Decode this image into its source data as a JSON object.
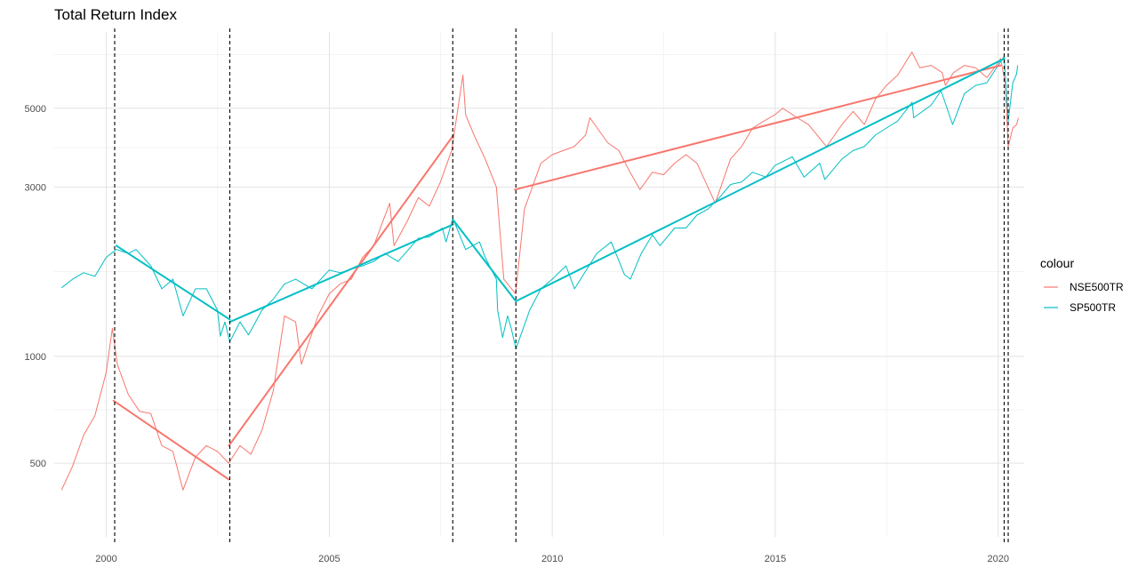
{
  "chart_data": {
    "type": "line",
    "title": "Total Return Index",
    "xlabel": "",
    "ylabel": "",
    "x_scale": "date",
    "y_scale": "log10",
    "xlim": [
      "1998-11-01",
      "2020-08-01"
    ],
    "ylim": [
      310,
      8200
    ],
    "x_ticks": [
      {
        "value": "2000-01-01",
        "label": "2000"
      },
      {
        "value": "2005-01-01",
        "label": "2005"
      },
      {
        "value": "2010-01-01",
        "label": "2010"
      },
      {
        "value": "2015-01-01",
        "label": "2015"
      },
      {
        "value": "2020-01-01",
        "label": "2020"
      }
    ],
    "x_minor_ticks": [
      "2002-07-01",
      "2007-07-01",
      "2012-07-01",
      "2017-07-01"
    ],
    "y_ticks": [
      {
        "value": 500,
        "label": "500"
      },
      {
        "value": 1000,
        "label": "1000"
      },
      {
        "value": 3000,
        "label": "3000"
      },
      {
        "value": 5000,
        "label": "5000"
      }
    ],
    "y_minor_ticks": [
      707,
      1732,
      3873,
      7071
    ],
    "grid": true,
    "legend": {
      "title": "colour",
      "position": "right"
    },
    "series": [
      {
        "name": "NSE500TR",
        "color": "#F8766D",
        "points": [
          [
            "1998-12-31",
            420
          ],
          [
            "1999-03-31",
            490
          ],
          [
            "1999-06-30",
            600
          ],
          [
            "1999-09-30",
            680
          ],
          [
            "1999-12-31",
            900
          ],
          [
            "2000-02-20",
            1200
          ],
          [
            "2000-03-31",
            950
          ],
          [
            "2000-06-30",
            780
          ],
          [
            "2000-09-30",
            700
          ],
          [
            "2000-12-31",
            690
          ],
          [
            "2001-03-31",
            560
          ],
          [
            "2001-06-30",
            540
          ],
          [
            "2001-09-20",
            420
          ],
          [
            "2001-12-31",
            520
          ],
          [
            "2002-03-31",
            560
          ],
          [
            "2002-06-30",
            540
          ],
          [
            "2002-09-30",
            500
          ],
          [
            "2002-12-31",
            560
          ],
          [
            "2003-03-31",
            530
          ],
          [
            "2003-06-30",
            620
          ],
          [
            "2003-09-30",
            800
          ],
          [
            "2003-12-31",
            1300
          ],
          [
            "2004-03-31",
            1250
          ],
          [
            "2004-05-17",
            950
          ],
          [
            "2004-09-30",
            1300
          ],
          [
            "2004-12-31",
            1500
          ],
          [
            "2005-03-31",
            1600
          ],
          [
            "2005-06-30",
            1650
          ],
          [
            "2005-09-30",
            1900
          ],
          [
            "2005-12-31",
            2050
          ],
          [
            "2006-05-10",
            2700
          ],
          [
            "2006-06-15",
            2050
          ],
          [
            "2006-09-30",
            2400
          ],
          [
            "2006-12-31",
            2800
          ],
          [
            "2007-03-31",
            2650
          ],
          [
            "2007-06-30",
            3100
          ],
          [
            "2007-09-30",
            3800
          ],
          [
            "2007-12-31",
            6200
          ],
          [
            "2008-01-22",
            4800
          ],
          [
            "2008-03-31",
            4200
          ],
          [
            "2008-06-30",
            3600
          ],
          [
            "2008-09-30",
            3000
          ],
          [
            "2008-11-30",
            1650
          ],
          [
            "2009-03-06",
            1500
          ],
          [
            "2009-05-18",
            2600
          ],
          [
            "2009-09-30",
            3500
          ],
          [
            "2009-12-31",
            3700
          ],
          [
            "2010-03-31",
            3800
          ],
          [
            "2010-06-30",
            3900
          ],
          [
            "2010-09-30",
            4200
          ],
          [
            "2010-11-05",
            4700
          ],
          [
            "2011-03-31",
            4000
          ],
          [
            "2011-06-30",
            3800
          ],
          [
            "2011-09-30",
            3300
          ],
          [
            "2011-12-20",
            2950
          ],
          [
            "2012-03-31",
            3300
          ],
          [
            "2012-06-30",
            3250
          ],
          [
            "2012-09-30",
            3500
          ],
          [
            "2012-12-31",
            3700
          ],
          [
            "2013-03-31",
            3500
          ],
          [
            "2013-08-28",
            2700
          ],
          [
            "2013-12-31",
            3600
          ],
          [
            "2014-03-31",
            3900
          ],
          [
            "2014-06-30",
            4400
          ],
          [
            "2014-09-30",
            4600
          ],
          [
            "2014-12-31",
            4800
          ],
          [
            "2015-03-04",
            5000
          ],
          [
            "2015-06-30",
            4700
          ],
          [
            "2015-09-30",
            4500
          ],
          [
            "2016-02-25",
            3900
          ],
          [
            "2016-06-30",
            4500
          ],
          [
            "2016-09-30",
            4900
          ],
          [
            "2016-12-31",
            4500
          ],
          [
            "2017-03-31",
            5300
          ],
          [
            "2017-06-30",
            5800
          ],
          [
            "2017-09-30",
            6200
          ],
          [
            "2018-01-24",
            7200
          ],
          [
            "2018-03-31",
            6500
          ],
          [
            "2018-06-30",
            6600
          ],
          [
            "2018-09-30",
            6300
          ],
          [
            "2018-10-26",
            5800
          ],
          [
            "2018-12-31",
            6300
          ],
          [
            "2019-03-31",
            6600
          ],
          [
            "2019-06-30",
            6500
          ],
          [
            "2019-09-30",
            6100
          ],
          [
            "2019-12-31",
            6700
          ],
          [
            "2020-01-20",
            6900
          ],
          [
            "2020-02-28",
            5900
          ],
          [
            "2020-03-23",
            3900
          ],
          [
            "2020-04-30",
            4400
          ],
          [
            "2020-05-31",
            4500
          ],
          [
            "2020-06-15",
            4700
          ]
        ],
        "trend_segments": [
          [
            [
              "2000-03-01",
              750
            ],
            [
              "2002-10-01",
              450
            ]
          ],
          [
            [
              "2002-10-01",
              560
            ],
            [
              "2007-10-15",
              4200
            ]
          ],
          [
            [
              "2009-03-01",
              2950
            ],
            [
              "2020-01-20",
              6600
            ]
          ]
        ]
      },
      {
        "name": "SP500TR",
        "color": "#00BFC4",
        "points": [
          [
            "1998-12-31",
            1560
          ],
          [
            "1999-03-31",
            1650
          ],
          [
            "1999-06-30",
            1720
          ],
          [
            "1999-09-30",
            1680
          ],
          [
            "1999-12-31",
            1900
          ],
          [
            "2000-03-24",
            2000
          ],
          [
            "2000-06-30",
            1950
          ],
          [
            "2000-09-01",
            2000
          ],
          [
            "2000-12-31",
            1800
          ],
          [
            "2001-03-31",
            1550
          ],
          [
            "2001-06-30",
            1650
          ],
          [
            "2001-09-21",
            1300
          ],
          [
            "2001-12-31",
            1550
          ],
          [
            "2002-03-31",
            1550
          ],
          [
            "2002-06-30",
            1350
          ],
          [
            "2002-07-23",
            1140
          ],
          [
            "2002-08-30",
            1250
          ],
          [
            "2002-10-09",
            1100
          ],
          [
            "2002-12-31",
            1250
          ],
          [
            "2003-03-11",
            1150
          ],
          [
            "2003-06-30",
            1350
          ],
          [
            "2003-09-30",
            1450
          ],
          [
            "2003-12-31",
            1600
          ],
          [
            "2004-03-31",
            1650
          ],
          [
            "2004-08-12",
            1550
          ],
          [
            "2004-12-31",
            1750
          ],
          [
            "2005-03-31",
            1720
          ],
          [
            "2005-06-30",
            1760
          ],
          [
            "2005-09-30",
            1800
          ],
          [
            "2005-12-31",
            1850
          ],
          [
            "2006-03-31",
            1950
          ],
          [
            "2006-07-18",
            1850
          ],
          [
            "2006-12-31",
            2150
          ],
          [
            "2007-03-31",
            2170
          ],
          [
            "2007-07-15",
            2300
          ],
          [
            "2007-08-15",
            2100
          ],
          [
            "2007-10-09",
            2450
          ],
          [
            "2008-01-22",
            2000
          ],
          [
            "2008-05-15",
            2100
          ],
          [
            "2008-06-30",
            1900
          ],
          [
            "2008-09-30",
            1650
          ],
          [
            "2008-10-10",
            1350
          ],
          [
            "2008-11-20",
            1130
          ],
          [
            "2008-12-31",
            1300
          ],
          [
            "2009-01-30",
            1200
          ],
          [
            "2009-03-09",
            1050
          ],
          [
            "2009-06-30",
            1350
          ],
          [
            "2009-09-30",
            1550
          ],
          [
            "2009-12-31",
            1650
          ],
          [
            "2010-04-23",
            1800
          ],
          [
            "2010-07-02",
            1550
          ],
          [
            "2010-12-31",
            1950
          ],
          [
            "2011-04-29",
            2100
          ],
          [
            "2011-08-15",
            1700
          ],
          [
            "2011-10-03",
            1650
          ],
          [
            "2011-12-31",
            1950
          ],
          [
            "2012-03-31",
            2200
          ],
          [
            "2012-06-01",
            2050
          ],
          [
            "2012-09-30",
            2300
          ],
          [
            "2012-12-31",
            2300
          ],
          [
            "2013-03-31",
            2500
          ],
          [
            "2013-06-30",
            2600
          ],
          [
            "2013-09-30",
            2800
          ],
          [
            "2013-12-31",
            3050
          ],
          [
            "2014-03-31",
            3100
          ],
          [
            "2014-06-30",
            3300
          ],
          [
            "2014-10-15",
            3200
          ],
          [
            "2014-12-31",
            3450
          ],
          [
            "2015-05-20",
            3650
          ],
          [
            "2015-08-25",
            3200
          ],
          [
            "2015-12-31",
            3500
          ],
          [
            "2016-02-11",
            3150
          ],
          [
            "2016-06-30",
            3600
          ],
          [
            "2016-09-30",
            3800
          ],
          [
            "2016-12-31",
            3900
          ],
          [
            "2017-03-31",
            4200
          ],
          [
            "2017-06-30",
            4400
          ],
          [
            "2017-09-30",
            4600
          ],
          [
            "2018-01-26",
            5200
          ],
          [
            "2018-02-08",
            4700
          ],
          [
            "2018-06-30",
            5100
          ],
          [
            "2018-09-20",
            5600
          ],
          [
            "2018-12-24",
            4500
          ],
          [
            "2019-03-31",
            5500
          ],
          [
            "2019-06-30",
            5800
          ],
          [
            "2019-09-30",
            5900
          ],
          [
            "2019-12-31",
            6600
          ],
          [
            "2020-02-19",
            7000
          ],
          [
            "2020-03-23",
            4600
          ],
          [
            "2020-04-30",
            5900
          ],
          [
            "2020-05-31",
            6250
          ],
          [
            "2020-06-08",
            6600
          ]
        ],
        "trend_segments": [
          [
            [
              "2000-03-24",
              2050
            ],
            [
              "2002-10-09",
              1270
            ]
          ],
          [
            [
              "2002-10-09",
              1250
            ],
            [
              "2007-10-09",
              2350
            ]
          ],
          [
            [
              "2007-10-09",
              2430
            ],
            [
              "2009-03-09",
              1430
            ]
          ],
          [
            [
              "2009-03-09",
              1430
            ],
            [
              "2020-02-19",
              6900
            ]
          ]
        ]
      }
    ],
    "vlines": [
      "2000-03-10",
      "2002-10-09",
      "2007-10-09",
      "2009-03-09",
      "2020-02-19",
      "2020-03-23"
    ]
  }
}
